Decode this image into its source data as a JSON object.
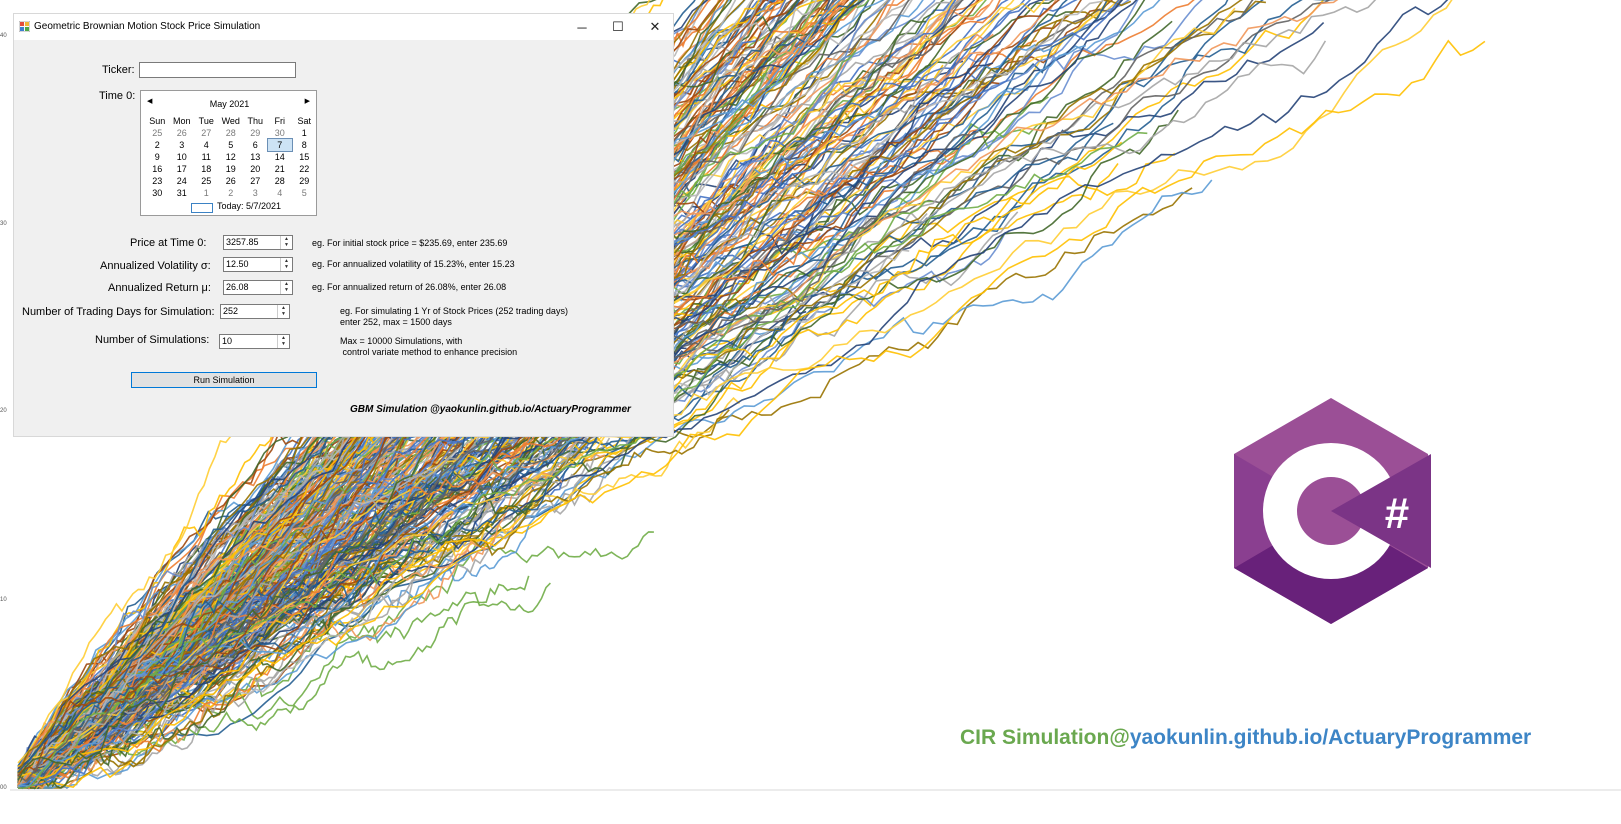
{
  "window": {
    "title": "Geometric Brownian Motion Stock Price Simulation",
    "controls": {
      "minimize": "─",
      "maximize": "☐",
      "close": "✕"
    }
  },
  "form": {
    "ticker_label": "Ticker:",
    "ticker_value": "",
    "time0_label": "Time 0:",
    "calendar": {
      "month_title": "May 2021",
      "prev": "◀",
      "next": "▶",
      "weekdays": [
        "Sun",
        "Mon",
        "Tue",
        "Wed",
        "Thu",
        "Fri",
        "Sat"
      ],
      "days": [
        [
          "25",
          "26",
          "27",
          "28",
          "29",
          "30",
          "1"
        ],
        [
          "2",
          "3",
          "4",
          "5",
          "6",
          "7",
          "8"
        ],
        [
          "9",
          "10",
          "11",
          "12",
          "13",
          "14",
          "15"
        ],
        [
          "16",
          "17",
          "18",
          "19",
          "20",
          "21",
          "22"
        ],
        [
          "23",
          "24",
          "25",
          "26",
          "27",
          "28",
          "29"
        ],
        [
          "30",
          "31",
          "1",
          "2",
          "3",
          "4",
          "5"
        ]
      ],
      "selected_day": "7",
      "today_label": "Today: 5/7/2021"
    },
    "price_label": "Price at Time 0:",
    "price_value": "3257.85",
    "price_hint": "eg. For initial stock price = $235.69, enter 235.69",
    "vol_label": "Annualized Volatility σ:",
    "vol_value": "12.50",
    "vol_hint": "eg. For annualized volatility of 15.23%, enter 15.23",
    "ret_label": "Annualized Return μ:",
    "ret_value": "26.08",
    "ret_hint": "eg. For annualized return of 26.08%, enter 26.08",
    "days_label": "Number of Trading Days for Simulation:",
    "days_value": "252",
    "days_hint_1": "eg. For simulating 1 Yr of Stock Prices (252 trading days)",
    "days_hint_2": "enter 252, max = 1500 days",
    "sims_label": "Number of Simulations:",
    "sims_value": "10",
    "sims_hint_1": "Max = 10000 Simulations, with",
    "sims_hint_2": " control variate method to enhance precision",
    "run_button": "Run Simulation",
    "credit": "GBM Simulation @yaokunlin.github.io/ActuaryProgrammer"
  },
  "background": {
    "ticks": [
      "40",
      "30",
      "20",
      "10",
      "00"
    ],
    "watermark_a": "CIR Simulation@",
    "watermark_b": "yaokunlin.github.io/ActuaryProgrammer",
    "logo_text": "#"
  },
  "chart_data": {
    "type": "line",
    "description_series_count": 300,
    "colors": [
      "#4472c4",
      "#ed7d31",
      "#a5a5a5",
      "#ffc000",
      "#5b9bd5",
      "#70ad47",
      "#264478",
      "#9e480e",
      "#636363",
      "#997300",
      "#255e91",
      "#43682b",
      "#698ed0",
      "#f1975a",
      "#b7b7b7",
      "#ffcd33"
    ],
    "y_ticks": [
      "40",
      "30",
      "20",
      "10",
      "00"
    ]
  }
}
